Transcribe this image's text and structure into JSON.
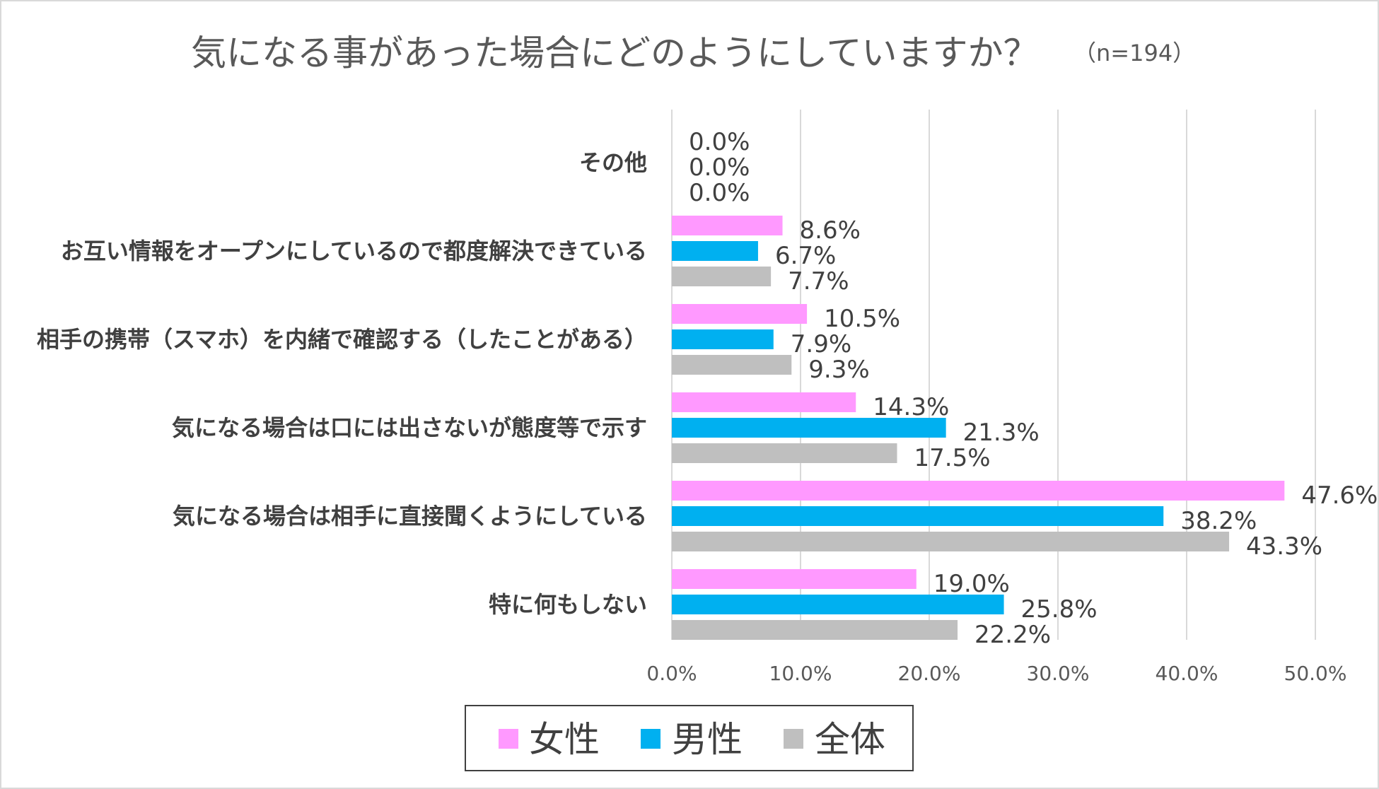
{
  "chart_data": {
    "type": "bar",
    "orientation": "horizontal",
    "title": "気になる事があった場合にどのようにしていますか？",
    "subtitle": "（n=194）",
    "categories": [
      "その他",
      "お互い情報をオープンにしているので都度解決できている",
      "相手の携帯（スマホ）を内緒で確認する（したことがある）",
      "気になる場合は口には出さないが態度等で示す",
      "気になる場合は相手に直接聞くようにしている",
      "特に何もしない"
    ],
    "series": [
      {
        "name": "女性",
        "color": "#ff99ff",
        "values": [
          0.0,
          8.6,
          10.5,
          14.3,
          47.6,
          19.0
        ],
        "labels": [
          "0.0%",
          "8.6%",
          "10.5%",
          "14.3%",
          "47.6%",
          "19.0%"
        ]
      },
      {
        "name": "男性",
        "color": "#00b0f0",
        "values": [
          0.0,
          6.7,
          7.9,
          21.3,
          38.2,
          25.8
        ],
        "labels": [
          "0.0%",
          "6.7%",
          "7.9%",
          "21.3%",
          "38.2%",
          "25.8%"
        ]
      },
      {
        "name": "全体",
        "color": "#bfbfbf",
        "values": [
          0.0,
          7.7,
          9.3,
          17.5,
          43.3,
          22.2
        ],
        "labels": [
          "0.0%",
          "7.7%",
          "9.3%",
          "17.5%",
          "43.3%",
          "22.2%"
        ]
      }
    ],
    "xlim": [
      0,
      50
    ],
    "xticks": [
      0,
      10,
      20,
      30,
      40,
      50
    ],
    "xtick_labels": [
      "0.0%",
      "10.0%",
      "20.0%",
      "30.0%",
      "40.0%",
      "50.0%"
    ],
    "grid": true,
    "legend_position": "bottom",
    "gridline_color": "#d9d9d9"
  }
}
